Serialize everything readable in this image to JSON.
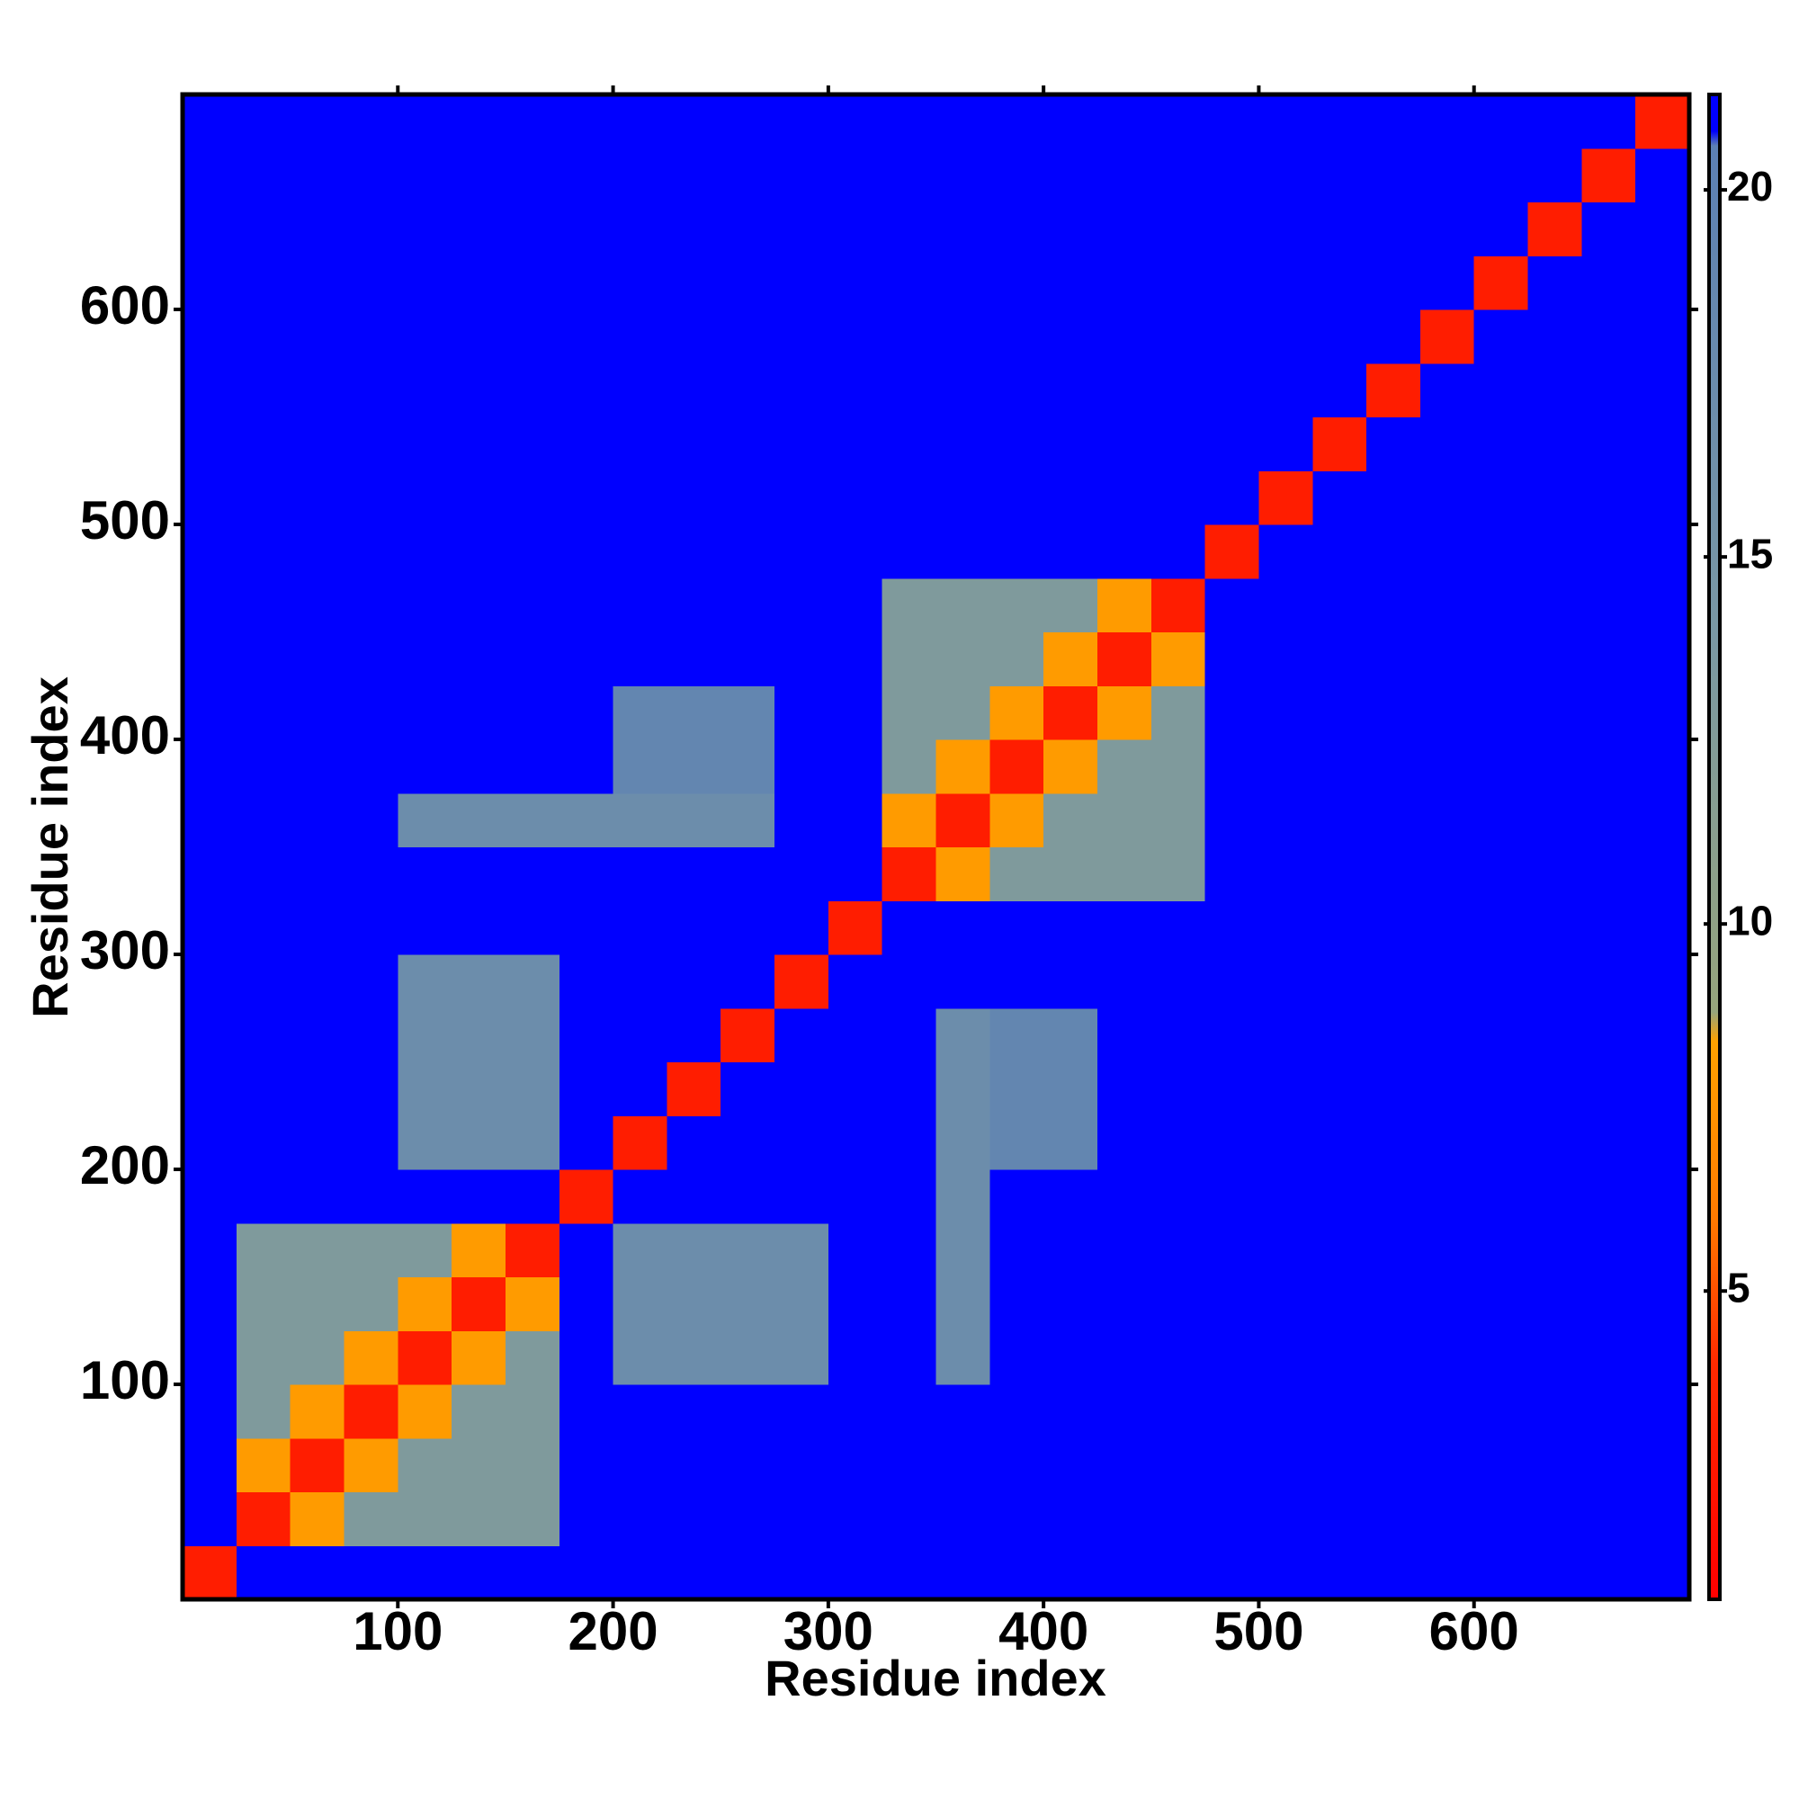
{
  "chart_data": {
    "type": "heatmap",
    "xlabel": "Residue index",
    "ylabel": "Residue index",
    "xlim": [
      0,
      700
    ],
    "ylim": [
      0,
      700
    ],
    "xticks": [
      100,
      200,
      300,
      400,
      500,
      600
    ],
    "yticks": [
      100,
      200,
      300,
      400,
      500,
      600
    ],
    "bins": [
      0,
      25,
      50,
      75,
      100,
      125,
      150,
      175,
      200,
      225,
      250,
      275,
      300,
      325,
      350,
      375,
      400,
      425,
      450,
      475,
      500,
      525,
      550,
      575,
      600,
      625,
      650,
      675,
      700
    ],
    "clim": [
      0.8,
      21.3
    ],
    "cticks": [
      5,
      10,
      15,
      20
    ],
    "colorscale": [
      [
        0.8,
        "#ff0000"
      ],
      [
        4,
        "#ff2a00"
      ],
      [
        6,
        "#ff7a00"
      ],
      [
        8.4,
        "#ffa200"
      ],
      [
        8.8,
        "#96a47c"
      ],
      [
        14,
        "#7a98a4"
      ],
      [
        20.6,
        "#5c80b4"
      ],
      [
        20.8,
        "#0000ff"
      ],
      [
        21.3,
        "#0000ff"
      ]
    ],
    "z": [
      [
        3,
        21,
        21,
        21,
        21,
        21,
        21,
        21,
        21,
        21,
        21,
        21,
        21,
        21,
        21,
        21,
        21,
        21,
        21,
        21,
        21,
        21,
        21,
        21,
        21,
        21,
        21,
        21
      ],
      [
        21,
        3,
        8,
        13,
        13,
        13,
        13,
        21,
        21,
        21,
        21,
        21,
        21,
        21,
        21,
        21,
        21,
        21,
        21,
        21,
        21,
        21,
        21,
        21,
        21,
        21,
        21,
        21
      ],
      [
        21,
        8,
        3,
        8,
        13,
        13,
        13,
        21,
        21,
        21,
        21,
        21,
        21,
        21,
        21,
        21,
        21,
        21,
        21,
        21,
        21,
        21,
        21,
        21,
        21,
        21,
        21,
        21
      ],
      [
        21,
        13,
        8,
        3,
        8,
        13,
        13,
        21,
        21,
        21,
        21,
        21,
        21,
        21,
        21,
        21,
        21,
        21,
        21,
        21,
        21,
        21,
        21,
        21,
        21,
        21,
        21,
        21
      ],
      [
        21,
        13,
        13,
        8,
        3,
        8,
        13,
        21,
        17,
        17,
        17,
        17,
        21,
        21,
        17,
        21,
        21,
        21,
        21,
        21,
        21,
        21,
        21,
        21,
        21,
        21,
        21,
        21
      ],
      [
        21,
        13,
        13,
        13,
        8,
        3,
        8,
        21,
        17,
        17,
        17,
        17,
        21,
        21,
        17,
        21,
        21,
        21,
        21,
        21,
        21,
        21,
        21,
        21,
        21,
        21,
        21,
        21
      ],
      [
        21,
        13,
        13,
        13,
        13,
        8,
        3,
        21,
        17,
        17,
        17,
        17,
        21,
        21,
        17,
        21,
        21,
        21,
        21,
        21,
        21,
        21,
        21,
        21,
        21,
        21,
        21,
        21
      ],
      [
        21,
        21,
        21,
        21,
        21,
        21,
        21,
        3,
        21,
        21,
        21,
        21,
        21,
        21,
        17,
        21,
        21,
        21,
        21,
        21,
        21,
        21,
        21,
        21,
        21,
        21,
        21,
        21
      ],
      [
        21,
        21,
        21,
        21,
        17,
        17,
        17,
        21,
        3,
        21,
        21,
        21,
        21,
        21,
        17,
        19,
        19,
        21,
        21,
        21,
        21,
        21,
        21,
        21,
        21,
        21,
        21,
        21
      ],
      [
        21,
        21,
        21,
        21,
        17,
        17,
        17,
        21,
        21,
        3,
        21,
        21,
        21,
        21,
        17,
        19,
        19,
        21,
        21,
        21,
        21,
        21,
        21,
        21,
        21,
        21,
        21,
        21
      ],
      [
        21,
        21,
        21,
        21,
        17,
        17,
        17,
        21,
        21,
        21,
        3,
        21,
        21,
        21,
        17,
        19,
        19,
        21,
        21,
        21,
        21,
        21,
        21,
        21,
        21,
        21,
        21,
        21
      ],
      [
        21,
        21,
        21,
        21,
        17,
        17,
        17,
        21,
        21,
        21,
        21,
        3,
        21,
        21,
        21,
        21,
        21,
        21,
        21,
        21,
        21,
        21,
        21,
        21,
        21,
        21,
        21,
        21
      ],
      [
        21,
        21,
        21,
        21,
        21,
        21,
        21,
        21,
        21,
        21,
        21,
        21,
        3,
        21,
        21,
        21,
        21,
        21,
        21,
        21,
        21,
        21,
        21,
        21,
        21,
        21,
        21,
        21
      ],
      [
        21,
        21,
        21,
        21,
        21,
        21,
        21,
        21,
        21,
        21,
        21,
        21,
        21,
        3,
        8,
        13,
        13,
        13,
        13,
        21,
        21,
        21,
        21,
        21,
        21,
        21,
        21,
        21
      ],
      [
        21,
        21,
        21,
        21,
        17,
        17,
        17,
        17,
        17,
        17,
        17,
        21,
        21,
        8,
        3,
        8,
        13,
        13,
        13,
        21,
        21,
        21,
        21,
        21,
        21,
        21,
        21,
        21
      ],
      [
        21,
        21,
        21,
        21,
        21,
        21,
        21,
        21,
        19,
        19,
        19,
        21,
        21,
        13,
        8,
        3,
        8,
        13,
        13,
        21,
        21,
        21,
        21,
        21,
        21,
        21,
        21,
        21
      ],
      [
        21,
        21,
        21,
        21,
        21,
        21,
        21,
        21,
        19,
        19,
        19,
        21,
        21,
        13,
        13,
        8,
        3,
        8,
        13,
        21,
        21,
        21,
        21,
        21,
        21,
        21,
        21,
        21
      ],
      [
        21,
        21,
        21,
        21,
        21,
        21,
        21,
        21,
        21,
        21,
        21,
        21,
        21,
        13,
        13,
        13,
        8,
        3,
        8,
        21,
        21,
        21,
        21,
        21,
        21,
        21,
        21,
        21
      ],
      [
        21,
        21,
        21,
        21,
        21,
        21,
        21,
        21,
        21,
        21,
        21,
        21,
        21,
        13,
        13,
        13,
        13,
        8,
        3,
        21,
        21,
        21,
        21,
        21,
        21,
        21,
        21,
        21
      ],
      [
        21,
        21,
        21,
        21,
        21,
        21,
        21,
        21,
        21,
        21,
        21,
        21,
        21,
        21,
        21,
        21,
        21,
        21,
        21,
        3,
        21,
        21,
        21,
        21,
        21,
        21,
        21,
        21
      ],
      [
        21,
        21,
        21,
        21,
        21,
        21,
        21,
        21,
        21,
        21,
        21,
        21,
        21,
        21,
        21,
        21,
        21,
        21,
        21,
        21,
        3,
        21,
        21,
        21,
        21,
        21,
        21,
        21
      ],
      [
        21,
        21,
        21,
        21,
        21,
        21,
        21,
        21,
        21,
        21,
        21,
        21,
        21,
        21,
        21,
        21,
        21,
        21,
        21,
        21,
        21,
        3,
        21,
        21,
        21,
        21,
        21,
        21
      ],
      [
        21,
        21,
        21,
        21,
        21,
        21,
        21,
        21,
        21,
        21,
        21,
        21,
        21,
        21,
        21,
        21,
        21,
        21,
        21,
        21,
        21,
        21,
        3,
        21,
        21,
        21,
        21,
        21
      ],
      [
        21,
        21,
        21,
        21,
        21,
        21,
        21,
        21,
        21,
        21,
        21,
        21,
        21,
        21,
        21,
        21,
        21,
        21,
        21,
        21,
        21,
        21,
        21,
        3,
        21,
        21,
        21,
        21
      ],
      [
        21,
        21,
        21,
        21,
        21,
        21,
        21,
        21,
        21,
        21,
        21,
        21,
        21,
        21,
        21,
        21,
        21,
        21,
        21,
        21,
        21,
        21,
        21,
        21,
        3,
        21,
        21,
        21
      ],
      [
        21,
        21,
        21,
        21,
        21,
        21,
        21,
        21,
        21,
        21,
        21,
        21,
        21,
        21,
        21,
        21,
        21,
        21,
        21,
        21,
        21,
        21,
        21,
        21,
        21,
        3,
        21,
        21
      ],
      [
        21,
        21,
        21,
        21,
        21,
        21,
        21,
        21,
        21,
        21,
        21,
        21,
        21,
        21,
        21,
        21,
        21,
        21,
        21,
        21,
        21,
        21,
        21,
        21,
        21,
        21,
        3,
        21
      ],
      [
        21,
        21,
        21,
        21,
        21,
        21,
        21,
        21,
        21,
        21,
        21,
        21,
        21,
        21,
        21,
        21,
        21,
        21,
        21,
        21,
        21,
        21,
        21,
        21,
        21,
        21,
        21,
        3
      ]
    ]
  }
}
